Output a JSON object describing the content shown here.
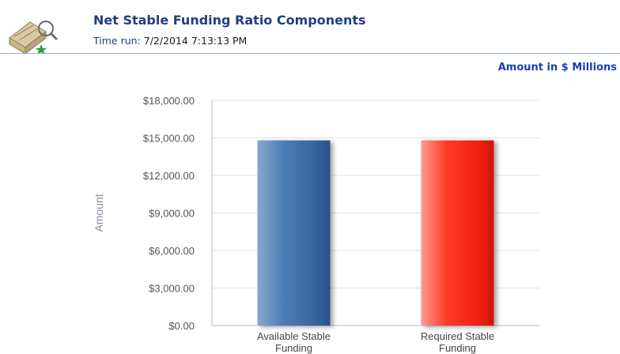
{
  "header": {
    "title": "Net Stable Funding Ratio Components",
    "time_run_label": "Time run:",
    "time_run_value": "7/2/2014 7:13:13 PM",
    "unit_note": "Amount in $ Millions",
    "icon": "report-icon"
  },
  "chart_data": {
    "type": "bar",
    "ylabel": "Amount",
    "ylim": [
      0,
      18000
    ],
    "ytick_values": [
      0,
      3000,
      6000,
      9000,
      12000,
      15000,
      18000
    ],
    "ytick_labels": [
      "$0.00",
      "$3,000.00",
      "$6,000.00",
      "$9,000.00",
      "$12,000.00",
      "$15,000.00",
      "$18,000.00"
    ],
    "categories": [
      {
        "line1": "Available Stable",
        "line2": "Funding"
      },
      {
        "line1": "Required Stable",
        "line2": "Funding"
      }
    ],
    "values": [
      14800,
      14800
    ],
    "colors": [
      "#3f6ea6",
      "#ff2a1a"
    ],
    "grid": true,
    "legend": "none"
  }
}
